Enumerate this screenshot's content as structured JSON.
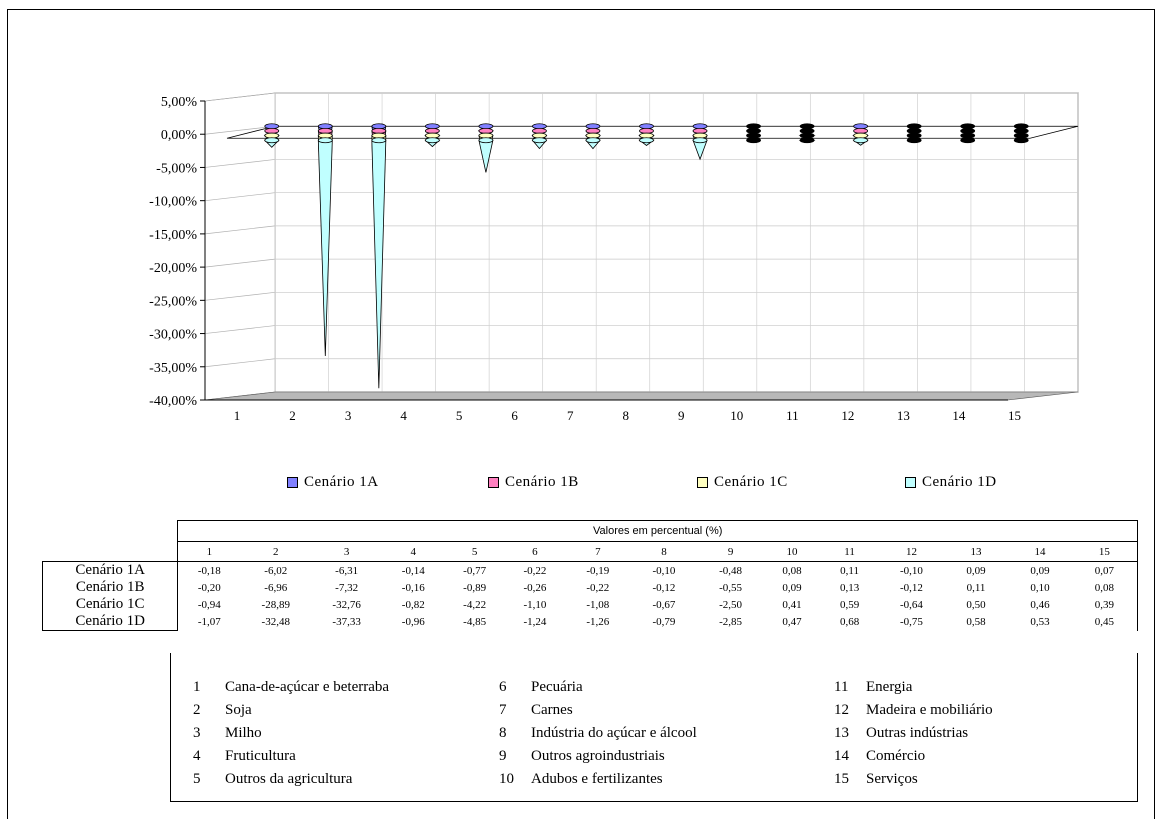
{
  "chart_data": {
    "type": "bar",
    "variant": "3d-cone",
    "categories": [
      "1",
      "2",
      "3",
      "4",
      "5",
      "6",
      "7",
      "8",
      "9",
      "10",
      "11",
      "12",
      "13",
      "14",
      "15"
    ],
    "ylim": [
      -40,
      5
    ],
    "yticks": [
      "5,00%",
      "0,00%",
      "-5,00%",
      "-10,00%",
      "-15,00%",
      "-20,00%",
      "-25,00%",
      "-30,00%",
      "-35,00%",
      "-40,00%"
    ],
    "grid": true,
    "legend_position": "bottom",
    "series": [
      {
        "name": "Cenário 1A",
        "color": "#8080ff",
        "values": [
          -0.18,
          -6.02,
          -6.31,
          -0.14,
          -0.77,
          -0.22,
          -0.19,
          -0.1,
          -0.48,
          0.08,
          0.11,
          -0.1,
          0.09,
          0.09,
          0.07
        ]
      },
      {
        "name": "Cenário 1B",
        "color": "#ff80c0",
        "values": [
          -0.2,
          -6.96,
          -7.32,
          -0.16,
          -0.89,
          -0.26,
          -0.22,
          -0.12,
          -0.55,
          0.09,
          0.13,
          -0.12,
          0.11,
          0.1,
          0.08
        ]
      },
      {
        "name": "Cenário 1C",
        "color": "#ffffc0",
        "values": [
          -0.94,
          -28.89,
          -32.76,
          -0.82,
          -4.22,
          -1.1,
          -1.08,
          -0.67,
          -2.5,
          0.41,
          0.59,
          -0.64,
          0.5,
          0.46,
          0.39
        ]
      },
      {
        "name": "Cenário 1D",
        "color": "#c0ffff",
        "values": [
          -1.07,
          -32.48,
          -37.33,
          -0.96,
          -4.85,
          -1.24,
          -1.26,
          -0.79,
          -2.85,
          0.47,
          0.68,
          -0.75,
          0.58,
          0.53,
          0.45
        ]
      }
    ]
  },
  "table": {
    "title": "Valores em percentual (%)",
    "columns": [
      "1",
      "2",
      "3",
      "4",
      "5",
      "6",
      "7",
      "8",
      "9",
      "10",
      "11",
      "12",
      "13",
      "14",
      "15"
    ],
    "rows": [
      {
        "label": "Cenário 1A",
        "cells": [
          "-0,18",
          "-6,02",
          "-6,31",
          "-0,14",
          "-0,77",
          "-0,22",
          "-0,19",
          "-0,10",
          "-0,48",
          "0,08",
          "0,11",
          "-0,10",
          "0,09",
          "0,09",
          "0,07"
        ]
      },
      {
        "label": "Cenário 1B",
        "cells": [
          "-0,20",
          "-6,96",
          "-7,32",
          "-0,16",
          "-0,89",
          "-0,26",
          "-0,22",
          "-0,12",
          "-0,55",
          "0,09",
          "0,13",
          "-0,12",
          "0,11",
          "0,10",
          "0,08"
        ]
      },
      {
        "label": "Cenário 1C",
        "cells": [
          "-0,94",
          "-28,89",
          "-32,76",
          "-0,82",
          "-4,22",
          "-1,10",
          "-1,08",
          "-0,67",
          "-2,50",
          "0,41",
          "0,59",
          "-0,64",
          "0,50",
          "0,46",
          "0,39"
        ]
      },
      {
        "label": "Cenário 1D",
        "cells": [
          "-1,07",
          "-32,48",
          "-37,33",
          "-0,96",
          "-4,85",
          "-1,24",
          "-1,26",
          "-0,79",
          "-2,85",
          "0,47",
          "0,68",
          "-0,75",
          "0,58",
          "0,53",
          "0,45"
        ]
      }
    ]
  },
  "sectors": [
    {
      "n": "1",
      "name": "Cana-de-açúcar e beterraba"
    },
    {
      "n": "2",
      "name": "Soja"
    },
    {
      "n": "3",
      "name": "Milho"
    },
    {
      "n": "4",
      "name": "Fruticultura"
    },
    {
      "n": "5",
      "name": "Outros da agricultura"
    },
    {
      "n": "6",
      "name": "Pecuária"
    },
    {
      "n": "7",
      "name": "Carnes"
    },
    {
      "n": "8",
      "name": "Indústria do açúcar e álcool"
    },
    {
      "n": "9",
      "name": "Outros agroindustriais"
    },
    {
      "n": "10",
      "name": "Adubos e fertilizantes"
    },
    {
      "n": "11",
      "name": "Energia"
    },
    {
      "n": "12",
      "name": "Madeira e mobiliário"
    },
    {
      "n": "13",
      "name": "Outras indústrias"
    },
    {
      "n": "14",
      "name": "Comércio"
    },
    {
      "n": "15",
      "name": "Serviços"
    }
  ]
}
